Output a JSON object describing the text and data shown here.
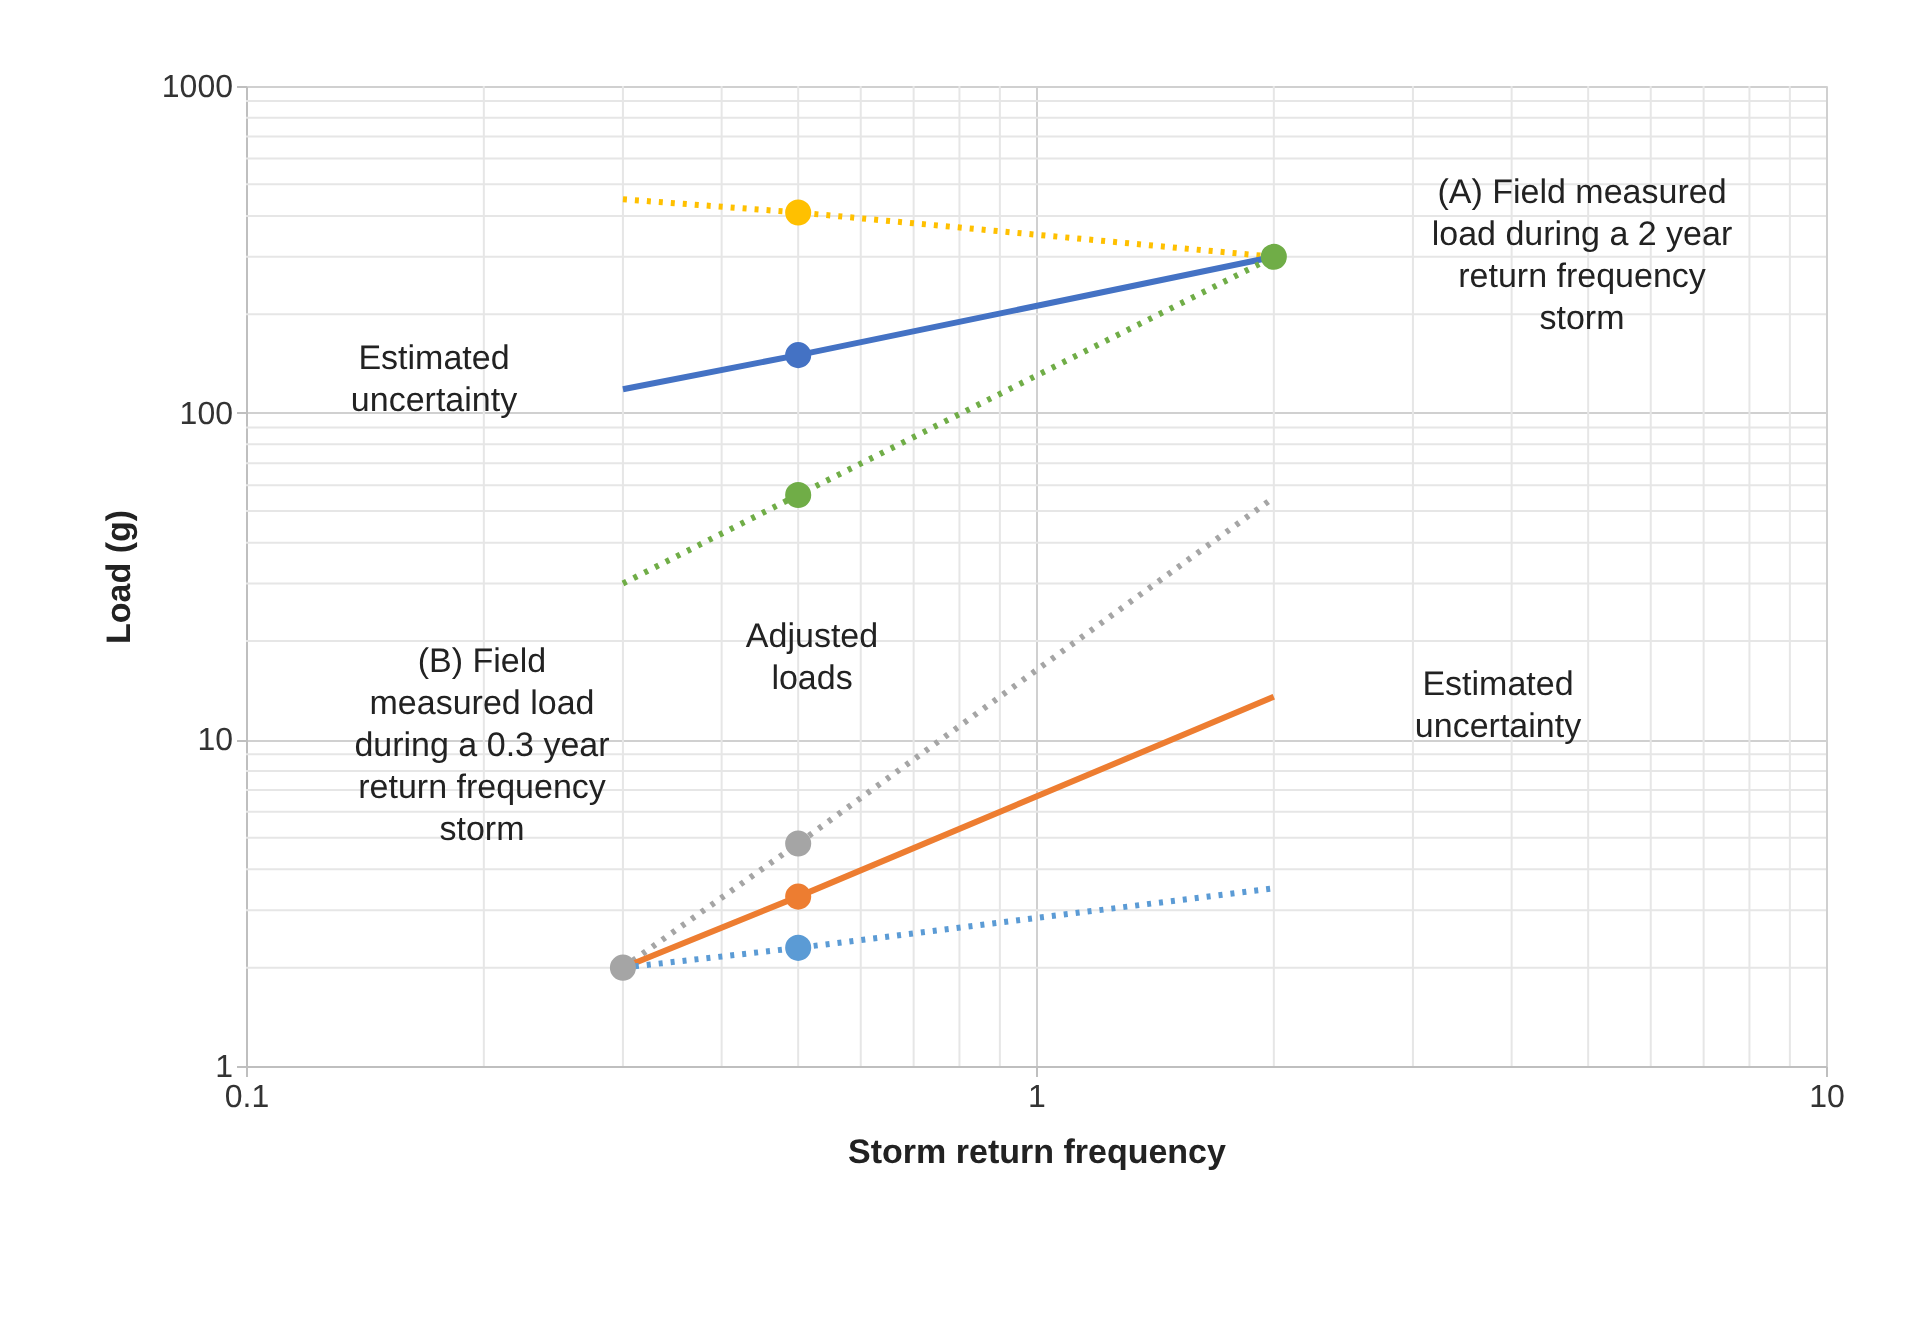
{
  "chart_data": {
    "type": "line",
    "xlabel": "Storm return frequency",
    "ylabel": "Load (g)",
    "log": "xy",
    "grid": true,
    "marker": "none",
    "xlim": [
      0.1,
      10
    ],
    "xticks": [
      0.1,
      1,
      10
    ],
    "ylim": [
      1,
      1000
    ],
    "yticks": [
      1,
      10,
      100,
      1000
    ],
    "series": [
      {
        "line_style": "dotted",
        "color": "#ffc000",
        "x": [
          0.3,
          0.5,
          2
        ],
        "values": [
          450,
          410,
          300
        ]
      },
      {
        "line_style": "solid",
        "color": "#4472c4",
        "x": [
          0.3,
          0.5,
          2
        ],
        "values": [
          118,
          150,
          300
        ]
      },
      {
        "line_style": "dotted",
        "color": "#70ad47",
        "x": [
          0.3,
          0.5,
          2
        ],
        "values": [
          30,
          56,
          300
        ]
      },
      {
        "line_style": "dotted",
        "color": "#a5a5a5",
        "x": [
          0.3,
          0.5,
          2
        ],
        "values": [
          2,
          4.8,
          55
        ]
      },
      {
        "line_style": "solid",
        "color": "#ed7d31",
        "x": [
          0.3,
          0.5,
          2
        ],
        "values": [
          2,
          3.3,
          13.5
        ]
      },
      {
        "line_style": "dotted",
        "color": "#5b9bd5",
        "x": [
          0.3,
          0.5,
          2
        ],
        "values": [
          2,
          2.3,
          3.5
        ]
      },
      {
        "type": "scatter",
        "marker": "circle",
        "color": "#ffc000",
        "x": [
          0.5
        ],
        "values": [
          410
        ]
      },
      {
        "type": "scatter",
        "marker": "circle",
        "color": "#4472c4",
        "x": [
          0.5
        ],
        "values": [
          150
        ]
      },
      {
        "type": "scatter",
        "marker": "circle",
        "color": "#70ad47",
        "x": [
          0.5,
          2
        ],
        "values": [
          56,
          300
        ]
      },
      {
        "type": "scatter",
        "marker": "circle",
        "color": "#a5a5a5",
        "x": [
          0.3,
          0.5
        ],
        "values": [
          2,
          4.8
        ]
      },
      {
        "type": "scatter",
        "marker": "circle",
        "color": "#ed7d31",
        "x": [
          0.5
        ],
        "values": [
          3.3
        ]
      },
      {
        "type": "scatter",
        "marker": "circle",
        "color": "#5b9bd5",
        "x": [
          0.5
        ],
        "values": [
          2.3
        ]
      }
    ],
    "annotations": [
      "(A) Field measured\nload during a 2 year\nreturn frequency\nstorm",
      "(B) Field\nmeasured load\nduring a 0.3 year\nreturn frequency\nstorm",
      "Estimated\nuncertainty",
      "Estimated\nuncertainty",
      "Adjusted\nloads"
    ]
  }
}
